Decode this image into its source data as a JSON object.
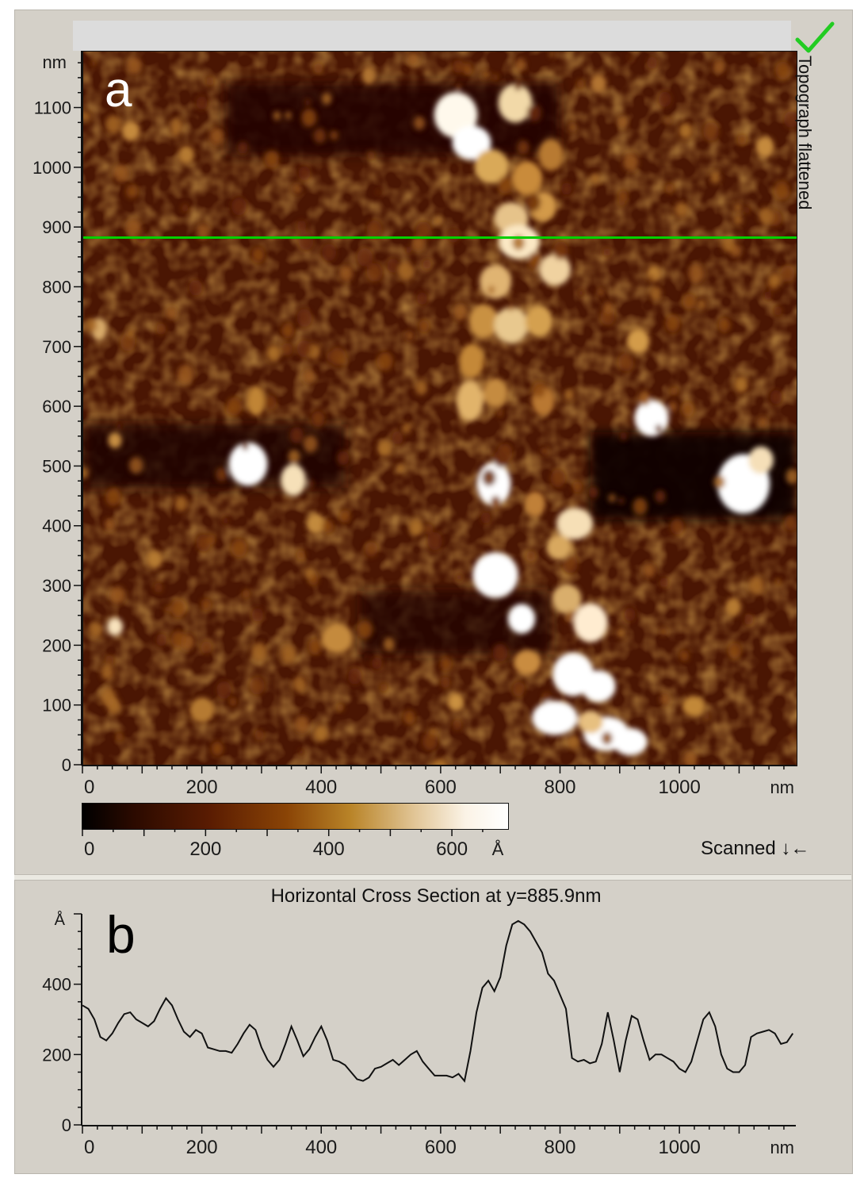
{
  "panel_a": {
    "letter": "a",
    "side_title": "Topograph flattened",
    "y_unit": "nm",
    "x_unit": "nm",
    "y_ticks": [
      "0",
      "100",
      "200",
      "300",
      "400",
      "500",
      "600",
      "700",
      "800",
      "900",
      "1000",
      "1100"
    ],
    "x_ticks": [
      "0",
      "200",
      "400",
      "600",
      "800",
      "1000"
    ],
    "colorbar_ticks": [
      "0",
      "200",
      "400",
      "600"
    ],
    "colorbar_unit": "Å",
    "scanned_label": "Scanned ↓←",
    "check_color": "#22cc22",
    "line_color": "#00d000"
  },
  "panel_b": {
    "letter": "b",
    "title": "Horizontal Cross Section at y=885.9nm",
    "y_unit": "Å",
    "x_unit": "nm",
    "y_ticks": [
      "0",
      "200",
      "400"
    ],
    "x_ticks": [
      "0",
      "200",
      "400",
      "600",
      "800",
      "1000"
    ]
  },
  "chart_data": {
    "type": "line",
    "title": "Horizontal Cross Section at y=885.9nm",
    "xlabel": "nm",
    "ylabel": "Å",
    "xlim": [
      0,
      1195
    ],
    "ylim": [
      0,
      600
    ],
    "series": [
      {
        "x": [
          0,
          10,
          20,
          30,
          40,
          50,
          60,
          70,
          80,
          90,
          100,
          110,
          120,
          130,
          140,
          150,
          160,
          170,
          180,
          190,
          200,
          210,
          220,
          230,
          240,
          250,
          260,
          270,
          280,
          290,
          300,
          310,
          320,
          330,
          340,
          350,
          360,
          370,
          380,
          390,
          400,
          410,
          420,
          430,
          440,
          450,
          460,
          470,
          480,
          490,
          500,
          510,
          520,
          530,
          540,
          550,
          560,
          570,
          580,
          590,
          600,
          610,
          620,
          630,
          640,
          650,
          660,
          670,
          680,
          690,
          700,
          710,
          720,
          730,
          740,
          750,
          760,
          770,
          780,
          790,
          800,
          810,
          820,
          830,
          840,
          850,
          860,
          870,
          880,
          890,
          900,
          910,
          920,
          930,
          940,
          950,
          960,
          970,
          980,
          990,
          1000,
          1010,
          1020,
          1030,
          1040,
          1050,
          1060,
          1070,
          1080,
          1090,
          1100,
          1110,
          1120,
          1130,
          1140,
          1150,
          1160,
          1170,
          1180,
          1190
        ],
        "y": [
          340,
          330,
          300,
          250,
          240,
          260,
          290,
          315,
          320,
          300,
          290,
          280,
          295,
          330,
          360,
          340,
          300,
          265,
          250,
          270,
          260,
          220,
          215,
          210,
          210,
          205,
          230,
          260,
          285,
          270,
          220,
          185,
          165,
          185,
          230,
          280,
          240,
          195,
          215,
          250,
          280,
          240,
          185,
          180,
          170,
          150,
          130,
          125,
          135,
          160,
          165,
          175,
          185,
          170,
          185,
          200,
          210,
          180,
          160,
          140,
          140,
          140,
          135,
          145,
          125,
          210,
          320,
          390,
          410,
          380,
          420,
          510,
          570,
          580,
          570,
          550,
          520,
          490,
          430,
          410,
          370,
          330,
          190,
          180,
          185,
          175,
          180,
          230,
          320,
          240,
          150,
          240,
          310,
          300,
          240,
          185,
          200,
          200,
          190,
          180,
          160,
          150,
          180,
          240,
          300,
          320,
          280,
          200,
          160,
          150,
          150,
          170,
          250,
          260,
          265,
          270,
          260,
          230,
          235,
          260
        ]
      }
    ]
  }
}
